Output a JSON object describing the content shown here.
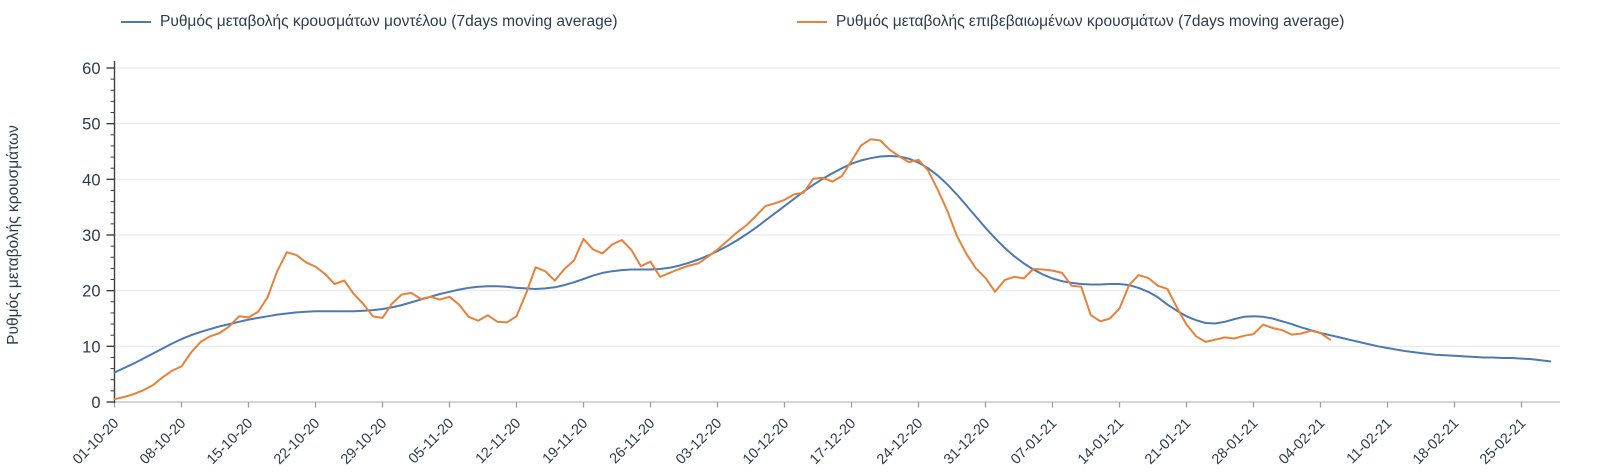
{
  "chart_data": {
    "type": "line",
    "title": "",
    "ylabel": "Ρυθμός μεταβολής κρουσμάτων",
    "ylim": [
      0,
      60
    ],
    "yticks": [
      0,
      10,
      20,
      30,
      40,
      50,
      60
    ],
    "y_minor_tick_step": 2,
    "grid": "horizontal-only",
    "legend_position": "top",
    "x_tick_labels": [
      "01-10-20",
      "08-10-20",
      "15-10-20",
      "22-10-20",
      "29-10-20",
      "05-11-20",
      "12-11-20",
      "19-11-20",
      "26-11-20",
      "03-12-20",
      "10-12-20",
      "17-12-20",
      "24-12-20",
      "31-12-20",
      "07-01-21",
      "14-01-21",
      "21-01-21",
      "28-01-21",
      "04-02-21",
      "11-02-21",
      "18-02-21",
      "25-02-21"
    ],
    "x_tick_days": [
      0,
      7,
      14,
      21,
      28,
      35,
      42,
      49,
      56,
      63,
      70,
      77,
      84,
      91,
      98,
      105,
      112,
      119,
      126,
      133,
      140,
      147
    ],
    "x_range_days": [
      0,
      150
    ],
    "x_unit": "date dd-mm-yy, daily resolution, day 0 = 01-10-20",
    "series": [
      {
        "name": "Ρυθμός μεταβολής κρουσμάτων μοντέλου (7days moving average)",
        "color": "#4c79b3",
        "start_day": 0,
        "values": [
          5.3,
          6.1,
          6.9,
          7.8,
          8.7,
          9.6,
          10.5,
          11.3,
          12.0,
          12.6,
          13.1,
          13.6,
          14.0,
          14.4,
          14.8,
          15.1,
          15.4,
          15.7,
          15.9,
          16.1,
          16.2,
          16.3,
          16.3,
          16.3,
          16.3,
          16.3,
          16.4,
          16.5,
          16.7,
          17.0,
          17.4,
          17.9,
          18.4,
          18.9,
          19.4,
          19.8,
          20.2,
          20.5,
          20.7,
          20.8,
          20.8,
          20.7,
          20.5,
          20.4,
          20.3,
          20.4,
          20.6,
          21.0,
          21.5,
          22.1,
          22.7,
          23.2,
          23.5,
          23.7,
          23.8,
          23.8,
          23.8,
          23.9,
          24.1,
          24.5,
          25.0,
          25.6,
          26.3,
          27.1,
          28.0,
          29.0,
          30.1,
          31.3,
          32.6,
          33.9,
          35.2,
          36.5,
          37.8,
          39.0,
          40.1,
          41.1,
          42.0,
          42.8,
          43.4,
          43.8,
          44.1,
          44.2,
          44.1,
          43.7,
          43.0,
          42.0,
          40.7,
          39.1,
          37.3,
          35.3,
          33.3,
          31.3,
          29.4,
          27.7,
          26.2,
          24.9,
          23.8,
          22.9,
          22.2,
          21.7,
          21.4,
          21.2,
          21.1,
          21.1,
          21.2,
          21.2,
          21.0,
          20.5,
          19.8,
          18.8,
          17.5,
          16.4,
          15.4,
          14.7,
          14.2,
          14.1,
          14.4,
          14.9,
          15.3,
          15.4,
          15.3,
          15.0,
          14.5,
          14.0,
          13.4,
          12.9,
          12.4,
          12.0,
          11.6,
          11.2,
          10.8,
          10.4,
          10.0,
          9.7,
          9.4,
          9.1,
          8.9,
          8.7,
          8.5,
          8.4,
          8.3,
          8.2,
          8.1,
          8.0,
          8.0,
          7.9,
          7.9,
          7.8,
          7.7,
          7.5,
          7.3
        ]
      },
      {
        "name": "Ρυθμός μεταβολής επιβεβαιωμένων κρουσμάτων (7days moving average)",
        "color": "#e8813a",
        "start_day": 0,
        "values": [
          0.5,
          0.9,
          1.4,
          2.1,
          3.0,
          4.4,
          5.6,
          6.4,
          8.9,
          10.8,
          11.8,
          12.4,
          13.6,
          15.4,
          15.2,
          16.2,
          18.8,
          23.5,
          26.9,
          26.4,
          25.1,
          24.3,
          23.0,
          21.2,
          21.8,
          19.4,
          17.6,
          15.4,
          15.1,
          17.7,
          19.3,
          19.6,
          18.5,
          18.9,
          18.4,
          18.9,
          17.5,
          15.3,
          14.6,
          15.6,
          14.4,
          14.3,
          15.4,
          19.5,
          24.2,
          23.5,
          21.8,
          23.9,
          25.4,
          29.3,
          27.4,
          26.7,
          28.3,
          29.1,
          27.3,
          24.4,
          25.2,
          22.5,
          23.2,
          23.9,
          24.5,
          24.9,
          26.1,
          27.4,
          28.9,
          30.4,
          31.7,
          33.4,
          35.2,
          35.7,
          36.3,
          37.3,
          37.6,
          40.1,
          40.3,
          39.6,
          40.6,
          43.3,
          46.1,
          47.2,
          47.0,
          45.3,
          44.1,
          43.1,
          43.5,
          41.6,
          38.2,
          34.4,
          29.9,
          26.6,
          24.0,
          22.3,
          19.8,
          21.9,
          22.5,
          22.2,
          23.9,
          23.8,
          23.6,
          23.2,
          20.9,
          20.7,
          15.6,
          14.5,
          15.0,
          16.8,
          21.0,
          22.8,
          22.3,
          20.9,
          20.3,
          17.0,
          13.9,
          11.8,
          10.8,
          11.2,
          11.6,
          11.4,
          11.9,
          12.2,
          13.9,
          13.3,
          12.9,
          12.1,
          12.3,
          12.8,
          12.4,
          11.2
        ]
      }
    ],
    "style": {
      "text_color": "#2c3b4e",
      "grid_color": "#eaeaea",
      "y_axis_color": "#3f3f3f",
      "x_axis_color": "#c9c9c9",
      "tick_color": "#9b9b9b",
      "background": "#ffffff"
    }
  }
}
